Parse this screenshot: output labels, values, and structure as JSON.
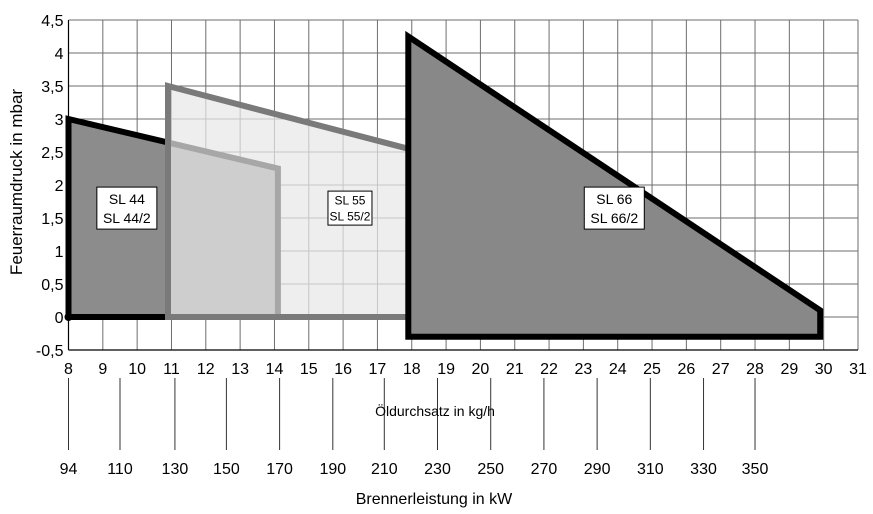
{
  "chart_data": {
    "type": "area",
    "ylabel": "Feuerraumdruck in mbar",
    "xlabel": "Öldurchsatz in kg/h",
    "x2label": "Brennerleistung in kW",
    "xlim": [
      8,
      31
    ],
    "ylim": [
      -0.5,
      4.5
    ],
    "x_ticks": [
      "8",
      "9",
      "10",
      "11",
      "12",
      "13",
      "14",
      "15",
      "16",
      "17",
      "18",
      "19",
      "20",
      "21",
      "22",
      "23",
      "24",
      "25",
      "26",
      "27",
      "28",
      "29",
      "30",
      "31"
    ],
    "y_ticks": [
      "-0,5",
      "0",
      "0,5",
      "1",
      "1,5",
      "2",
      "2,5",
      "3",
      "3,5",
      "4",
      "4,5"
    ],
    "kw_ticks": [
      {
        "label": "94",
        "x": 8
      },
      {
        "label": "110",
        "x": 9.5
      },
      {
        "label": "130",
        "x": 11.1
      },
      {
        "label": "150",
        "x": 12.6
      },
      {
        "label": "170",
        "x": 14.15
      },
      {
        "label": "190",
        "x": 15.7
      },
      {
        "label": "210",
        "x": 17.2
      },
      {
        "label": "230",
        "x": 18.75
      },
      {
        "label": "250",
        "x": 20.3
      },
      {
        "label": "270",
        "x": 21.85
      },
      {
        "label": "290",
        "x": 23.4
      },
      {
        "label": "310",
        "x": 24.95
      },
      {
        "label": "330",
        "x": 26.5
      },
      {
        "label": "350",
        "x": 28.0
      }
    ],
    "grid": true,
    "series": [
      {
        "name_lines": [
          "SL 44",
          "SL 44/2"
        ],
        "label_pos": [
          9.7,
          1.65
        ],
        "fill": "#8c8c8c",
        "stroke": "#000000",
        "polygon": [
          [
            8,
            0
          ],
          [
            8,
            3.0
          ],
          [
            14.1,
            2.25
          ],
          [
            14.1,
            0
          ]
        ]
      },
      {
        "name_lines": [
          "SL 55",
          "SL 55/2"
        ],
        "label_pos": [
          16.2,
          1.65
        ],
        "fill": "#e8e8e8",
        "stroke": "#7a7a7a",
        "fill_opacity": 0.72,
        "polygon": [
          [
            10.9,
            0
          ],
          [
            10.9,
            3.5
          ],
          [
            20.1,
            2.25
          ],
          [
            20.1,
            0
          ]
        ]
      },
      {
        "name_lines": [
          "SL 66",
          "SL 66/2"
        ],
        "label_pos": [
          23.9,
          1.65
        ],
        "fill": "#888888",
        "stroke": "#000000",
        "polygon": [
          [
            17.9,
            -0.3
          ],
          [
            17.9,
            4.25
          ],
          [
            29.9,
            0.1
          ],
          [
            29.9,
            -0.3
          ]
        ]
      }
    ]
  }
}
